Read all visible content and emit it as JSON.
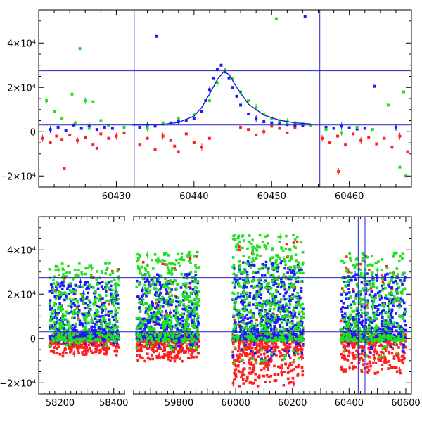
{
  "chart_data": [
    {
      "type": "scatter",
      "title": "",
      "xlabel": "",
      "ylabel": "",
      "xlim": [
        60420,
        60468
      ],
      "ylim": [
        -25000,
        55000
      ],
      "x_ticks": [
        60430,
        60440,
        60450,
        60460
      ],
      "y_ticks": [
        {
          "value": -20000,
          "label": "−2×10⁴"
        },
        {
          "value": 0,
          "label": "0"
        },
        {
          "value": 20000,
          "label": "2×10⁴"
        },
        {
          "value": 40000,
          "label": "4×10⁴"
        }
      ],
      "reference_lines": {
        "horizontal": [
          27500,
          3000
        ],
        "vertical": [
          60432.3,
          60456.2
        ]
      },
      "model_curve": {
        "color": "#1a1acc",
        "x": [
          60432,
          60436,
          60438,
          60440,
          60441,
          60442,
          60443,
          60443.8,
          60444.5,
          60445.5,
          60447,
          60449,
          60451,
          60453,
          60455
        ],
        "y": [
          3000,
          3300,
          4200,
          7000,
          11000,
          17000,
          23500,
          27000,
          26000,
          20000,
          12500,
          7500,
          5200,
          4000,
          3500
        ]
      },
      "series": [
        {
          "color": "#ff2020",
          "x": [
            60420.5,
            60421.5,
            60422.3,
            60423,
            60424,
            60425,
            60426,
            60427,
            60428,
            60429,
            60430,
            60431,
            60433,
            60434,
            60435,
            60436,
            60437,
            60438,
            60439,
            60440,
            60441,
            60442,
            60446,
            60447,
            60448,
            60449,
            60450,
            60451,
            60452,
            60453,
            60456.5,
            60457.5,
            60458.5,
            60459.5,
            60460.5,
            60461.5,
            60462.5,
            60463.5,
            60464.5,
            60465.5,
            60466.5,
            60467.5,
            60423.3,
            60427.5,
            60437.5,
            60458.6
          ],
          "y": [
            -3000,
            -5000,
            -2000,
            -3500,
            -1500,
            -4000,
            -2500,
            -6000,
            -1000,
            -3000,
            -2000,
            -500,
            -6000,
            -3000,
            -8000,
            -2000,
            -4000,
            -9000,
            -1000,
            -5000,
            -7000,
            -3000,
            2000,
            1000,
            -1500,
            0,
            2500,
            1500,
            -500,
            2000,
            -3000,
            -5000,
            -2000,
            -6000,
            -1000,
            -4000,
            -2500,
            -5500,
            -3000,
            -7000,
            -2000,
            -9000,
            -16500,
            -7500,
            -6500,
            -18000
          ]
        },
        {
          "color": "#1a1aff",
          "x": [
            60421.5,
            60422.5,
            60423.5,
            60424.5,
            60425.5,
            60426.5,
            60427.5,
            60428.5,
            60429.5,
            60433,
            60434,
            60435,
            60435.2,
            60436,
            60437,
            60438,
            60439,
            60440,
            60441,
            60441.5,
            60442,
            60442.5,
            60443,
            60443.5,
            60444,
            60444.5,
            60445,
            60445.5,
            60446,
            60447,
            60448,
            60449,
            60450,
            60451,
            60452,
            60453,
            60454,
            60454.3,
            60457,
            60458,
            60459,
            60460,
            60461,
            60462,
            60463.2,
            60466
          ],
          "y": [
            1000,
            2000,
            500,
            3000,
            1500,
            2500,
            1000,
            2000,
            1500,
            2000,
            3000,
            2500,
            43000,
            3500,
            4000,
            4500,
            5000,
            6000,
            9000,
            14000,
            19000,
            24000,
            28000,
            30000,
            27000,
            24000,
            20000,
            16000,
            12000,
            8000,
            6000,
            4500,
            4000,
            3500,
            3200,
            3000,
            2800,
            52000,
            2000,
            1500,
            2500,
            1800,
            1200,
            1500,
            20500,
            2000
          ]
        },
        {
          "color": "#20e020",
          "x": [
            60421,
            60422,
            60423,
            60424.3,
            60425.3,
            60426,
            60427,
            60428,
            60429,
            60431,
            60434,
            60436,
            60438,
            60440,
            60442,
            60443,
            60444,
            60445,
            60446,
            60447,
            60448,
            60449,
            60450,
            60450.6,
            60451,
            60452,
            60453,
            60454,
            60455,
            60457,
            60459,
            60461,
            60463,
            60465,
            60467,
            60424.7,
            60426.5,
            60466.5,
            60467.2
          ],
          "y": [
            14000,
            9000,
            6000,
            17000,
            37500,
            14000,
            13500,
            5000,
            3000,
            2000,
            1500,
            4000,
            6000,
            8000,
            14000,
            22000,
            28000,
            24000,
            18000,
            14000,
            11000,
            8000,
            6000,
            51000,
            5000,
            4500,
            4000,
            3500,
            3000,
            1000,
            -500,
            2000,
            1000,
            12000,
            18000,
            4000,
            1500,
            -16000,
            -20000
          ]
        }
      ]
    },
    {
      "type": "scatter",
      "title": "",
      "xlabel": "",
      "ylabel": "",
      "axis_break": true,
      "segments": [
        {
          "xlim": [
            58120,
            58440
          ],
          "x_ticks": [
            58200,
            58400
          ]
        },
        {
          "xlim": [
            59640,
            60620
          ],
          "x_ticks": [
            59800,
            60000,
            60200,
            60400,
            60600
          ]
        }
      ],
      "ylim": [
        -25000,
        55000
      ],
      "y_ticks": [
        {
          "value": -20000,
          "label": "−2×10⁴"
        },
        {
          "value": 0,
          "label": "0"
        },
        {
          "value": 20000,
          "label": "2×10⁴"
        },
        {
          "value": 40000,
          "label": "4×10⁴"
        }
      ],
      "reference_lines": {
        "horizontal": [
          27500,
          3000
        ],
        "vertical": [
          60432.3,
          60456.2
        ]
      },
      "seasons": [
        {
          "x_start": 58160,
          "x_end": 58420,
          "y_center": 1000,
          "upper_spread": 35000,
          "lower_spread": 8000,
          "count": 400
        },
        {
          "x_start": 59650,
          "x_end": 59870,
          "y_center": 1000,
          "upper_spread": 40000,
          "lower_spread": 10000,
          "count": 450
        },
        {
          "x_start": 59990,
          "x_end": 60240,
          "y_center": 1000,
          "upper_spread": 48000,
          "lower_spread": 22000,
          "count": 520
        },
        {
          "x_start": 60370,
          "x_end": 60600,
          "y_center": 1000,
          "upper_spread": 40000,
          "lower_spread": 16000,
          "count": 420
        }
      ],
      "series_colors": [
        "#ff2020",
        "#1a1aff",
        "#20e020"
      ]
    }
  ]
}
